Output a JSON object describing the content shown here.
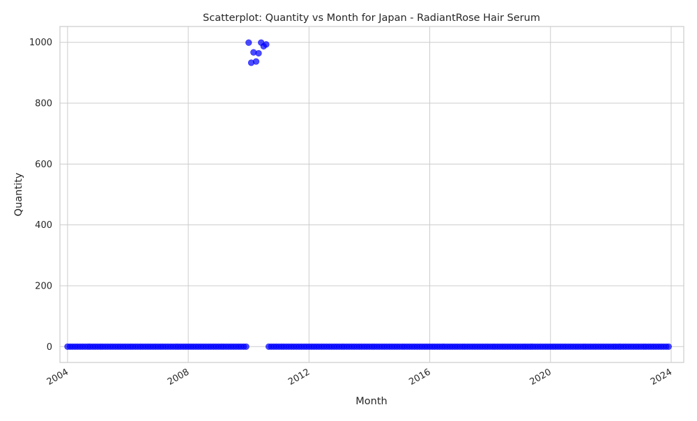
{
  "chart_data": {
    "type": "scatter",
    "title": "Scatterplot: Quantity vs Month for Japan - RadiantRose Hair Serum",
    "xlabel": "Month",
    "ylabel": "Quantity",
    "x_range": [
      "2003-10-01",
      "2024-06-01"
    ],
    "x_ticks": [
      "2004",
      "2008",
      "2012",
      "2016",
      "2020",
      "2024"
    ],
    "x_tick_dates": [
      "2004-01-01",
      "2008-01-01",
      "2012-01-01",
      "2016-01-01",
      "2020-01-01",
      "2024-01-01"
    ],
    "ylim": [
      -52,
      1052
    ],
    "y_ticks": [
      0,
      200,
      400,
      600,
      800,
      1000
    ],
    "grid": true,
    "point_color": "#0000ff",
    "first_month": "2004-01",
    "last_month": "2023-12",
    "baseline_value": 0,
    "points_nonzero": [
      {
        "x": "2010-01",
        "y": 999
      },
      {
        "x": "2010-02",
        "y": 933
      },
      {
        "x": "2010-03",
        "y": 967
      },
      {
        "x": "2010-04",
        "y": 937
      },
      {
        "x": "2010-05",
        "y": 964
      },
      {
        "x": "2010-06",
        "y": 999
      },
      {
        "x": "2010-07",
        "y": 987
      },
      {
        "x": "2010-08",
        "y": 993
      }
    ]
  }
}
